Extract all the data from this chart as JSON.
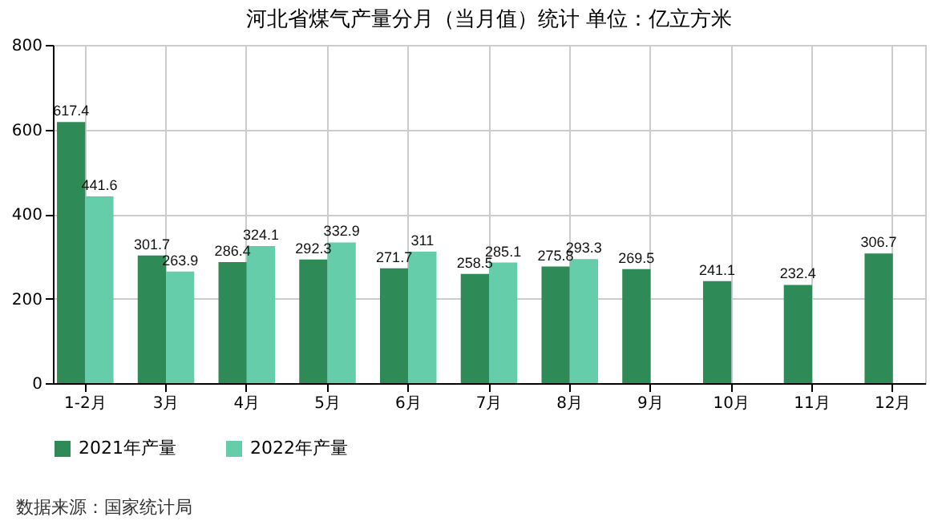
{
  "chart_data": {
    "type": "bar",
    "title": "河北省煤气产量分月（当月值）统计  单位：亿立方米",
    "categories": [
      "1-2月",
      "3月",
      "4月",
      "5月",
      "6月",
      "7月",
      "8月",
      "9月",
      "10月",
      "11月",
      "12月"
    ],
    "series": [
      {
        "name": "2021年产量",
        "color": "#2e8b57",
        "values": [
          617.4,
          301.7,
          286.4,
          292.3,
          271.7,
          258.5,
          275.8,
          269.5,
          241.1,
          232.4,
          306.7
        ]
      },
      {
        "name": "2022年产量",
        "color": "#66cdaa",
        "values": [
          441.6,
          263.9,
          324.1,
          332.9,
          311,
          285.1,
          293.3,
          null,
          null,
          null,
          null
        ]
      }
    ],
    "ylim": [
      0,
      800
    ],
    "yticks": [
      0,
      200,
      400,
      600,
      800
    ],
    "grid": true,
    "legend": "bottom",
    "data_labels": true,
    "annotations": [
      "数据来源：国家统计局"
    ]
  }
}
